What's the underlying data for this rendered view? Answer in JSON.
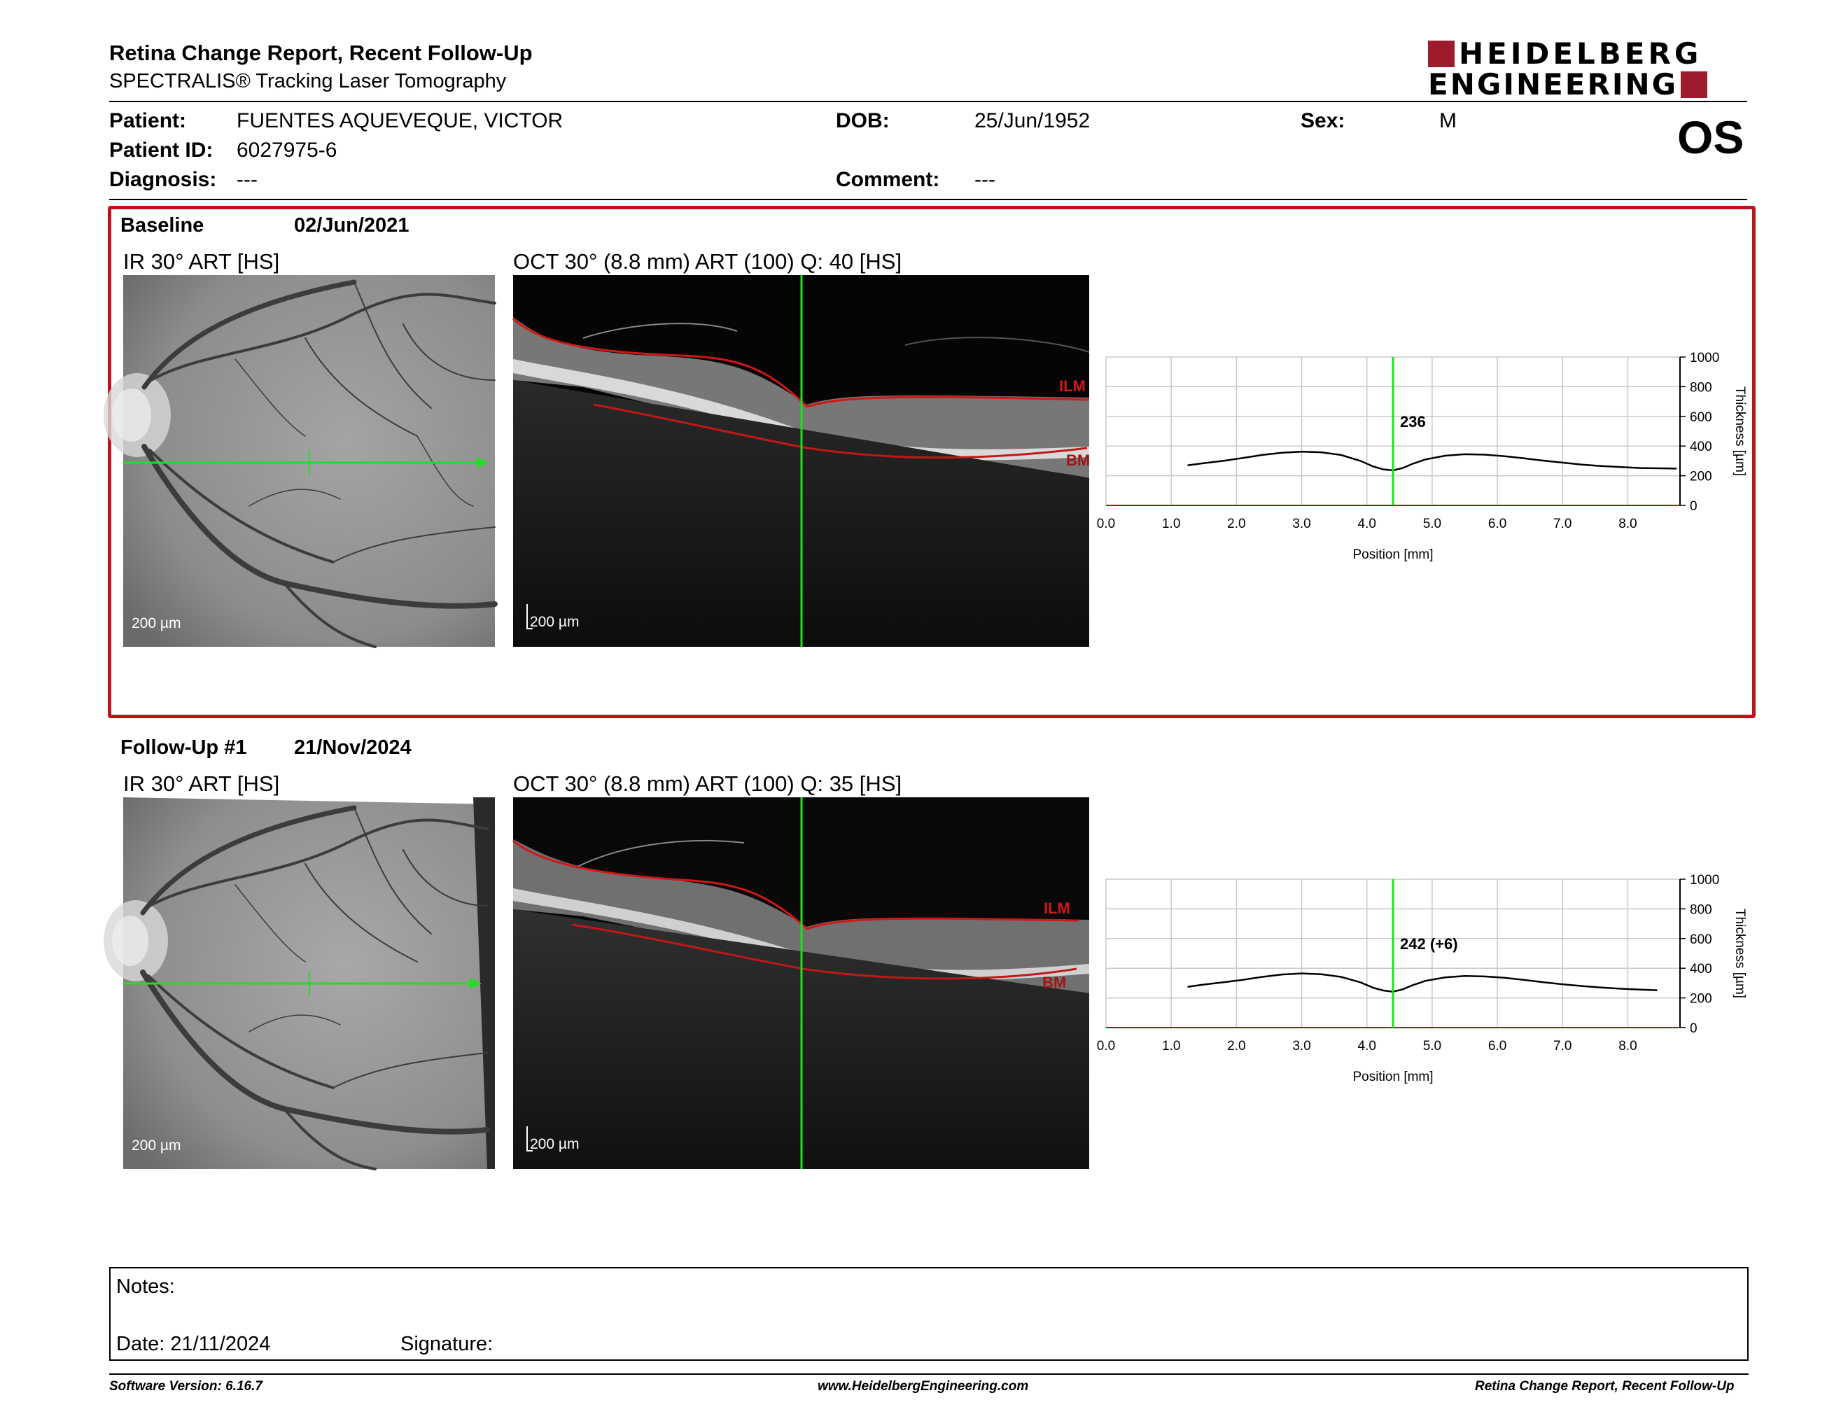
{
  "header": {
    "title": "Retina Change Report, Recent Follow-Up",
    "subtitle": "SPECTRALIS® Tracking Laser Tomography",
    "logo_line1": "HEIDELBERG",
    "logo_line2": "ENGINEERING",
    "eye": "OS"
  },
  "patient": {
    "patient_label": "Patient:",
    "patient_value": "FUENTES AQUEVEQUE, VICTOR",
    "id_label": "Patient ID:",
    "id_value": "6027975-6",
    "diagnosis_label": "Diagnosis:",
    "diagnosis_value": "---",
    "dob_label": "DOB:",
    "dob_value": "25/Jun/1952",
    "comment_label": "Comment:",
    "comment_value": "---",
    "sex_label": "Sex:",
    "sex_value": "M"
  },
  "baseline": {
    "label": "Baseline",
    "date": "02/Jun/2021",
    "ir_caption": "IR 30° ART [HS]",
    "oct_caption": "OCT 30° (8.8 mm) ART (100) Q: 40 [HS]",
    "ir_scale": "200 µm",
    "oct_scale": "200 µm",
    "ilm": "ILM",
    "bm": "BM"
  },
  "followup": {
    "label": "Follow-Up #1",
    "date": "21/Nov/2024",
    "ir_caption": "IR 30° ART [HS]",
    "oct_caption": "OCT 30° (8.8 mm) ART (100) Q: 35 [HS]",
    "ir_scale": "200 µm",
    "oct_scale": "200 µm",
    "ilm": "ILM",
    "bm": "BM"
  },
  "chart_data": [
    {
      "type": "line",
      "xlabel": "Position [mm]",
      "ylabel": "Thickness [µm]",
      "xlim": [
        0,
        8.8
      ],
      "ylim": [
        0,
        1000
      ],
      "x_ticks": [
        "0.0",
        "1.0",
        "2.0",
        "3.0",
        "4.0",
        "5.0",
        "6.0",
        "7.0",
        "8.0"
      ],
      "y_ticks": [
        "0",
        "200",
        "400",
        "600",
        "800",
        "1000"
      ],
      "marker_x": 4.4,
      "marker_label": "236",
      "grid": true,
      "series": [
        {
          "x": [
            1.25,
            1.5,
            1.8,
            2.1,
            2.4,
            2.7,
            3.0,
            3.3,
            3.6,
            3.9,
            4.1,
            4.25,
            4.4,
            4.55,
            4.7,
            4.9,
            5.2,
            5.5,
            5.8,
            6.1,
            6.4,
            6.7,
            7.0,
            7.3,
            7.6,
            7.9,
            8.2,
            8.5,
            8.75
          ],
          "y": [
            270,
            285,
            300,
            320,
            340,
            355,
            362,
            358,
            340,
            300,
            262,
            243,
            236,
            252,
            280,
            310,
            335,
            345,
            342,
            332,
            318,
            302,
            288,
            275,
            265,
            258,
            252,
            250,
            248
          ]
        }
      ]
    },
    {
      "type": "line",
      "xlabel": "Position [mm]",
      "ylabel": "Thickness [µm]",
      "xlim": [
        0,
        8.8
      ],
      "ylim": [
        0,
        1000
      ],
      "x_ticks": [
        "0.0",
        "1.0",
        "2.0",
        "3.0",
        "4.0",
        "5.0",
        "6.0",
        "7.0",
        "8.0"
      ],
      "y_ticks": [
        "0",
        "200",
        "400",
        "600",
        "800",
        "1000"
      ],
      "marker_x": 4.4,
      "marker_label": "242 (+6)",
      "grid": true,
      "series": [
        {
          "x": [
            1.25,
            1.5,
            1.8,
            2.1,
            2.4,
            2.7,
            3.0,
            3.3,
            3.6,
            3.9,
            4.1,
            4.25,
            4.4,
            4.55,
            4.7,
            4.9,
            5.2,
            5.5,
            5.8,
            6.1,
            6.4,
            6.7,
            7.0,
            7.3,
            7.6,
            7.9,
            8.2,
            8.45
          ],
          "y": [
            275,
            290,
            305,
            322,
            342,
            358,
            365,
            360,
            342,
            305,
            268,
            250,
            242,
            258,
            286,
            315,
            338,
            348,
            345,
            336,
            322,
            306,
            292,
            280,
            270,
            262,
            256,
            252
          ]
        }
      ]
    }
  ],
  "notes": {
    "notes_label": "Notes:",
    "date_label": "Date: 21/11/2024",
    "signature_label": "Signature:"
  },
  "footer": {
    "left": "Software Version: 6.16.7",
    "center": "www.HeidelbergEngineering.com",
    "right": "Retina Change Report, Recent Follow-Up"
  }
}
